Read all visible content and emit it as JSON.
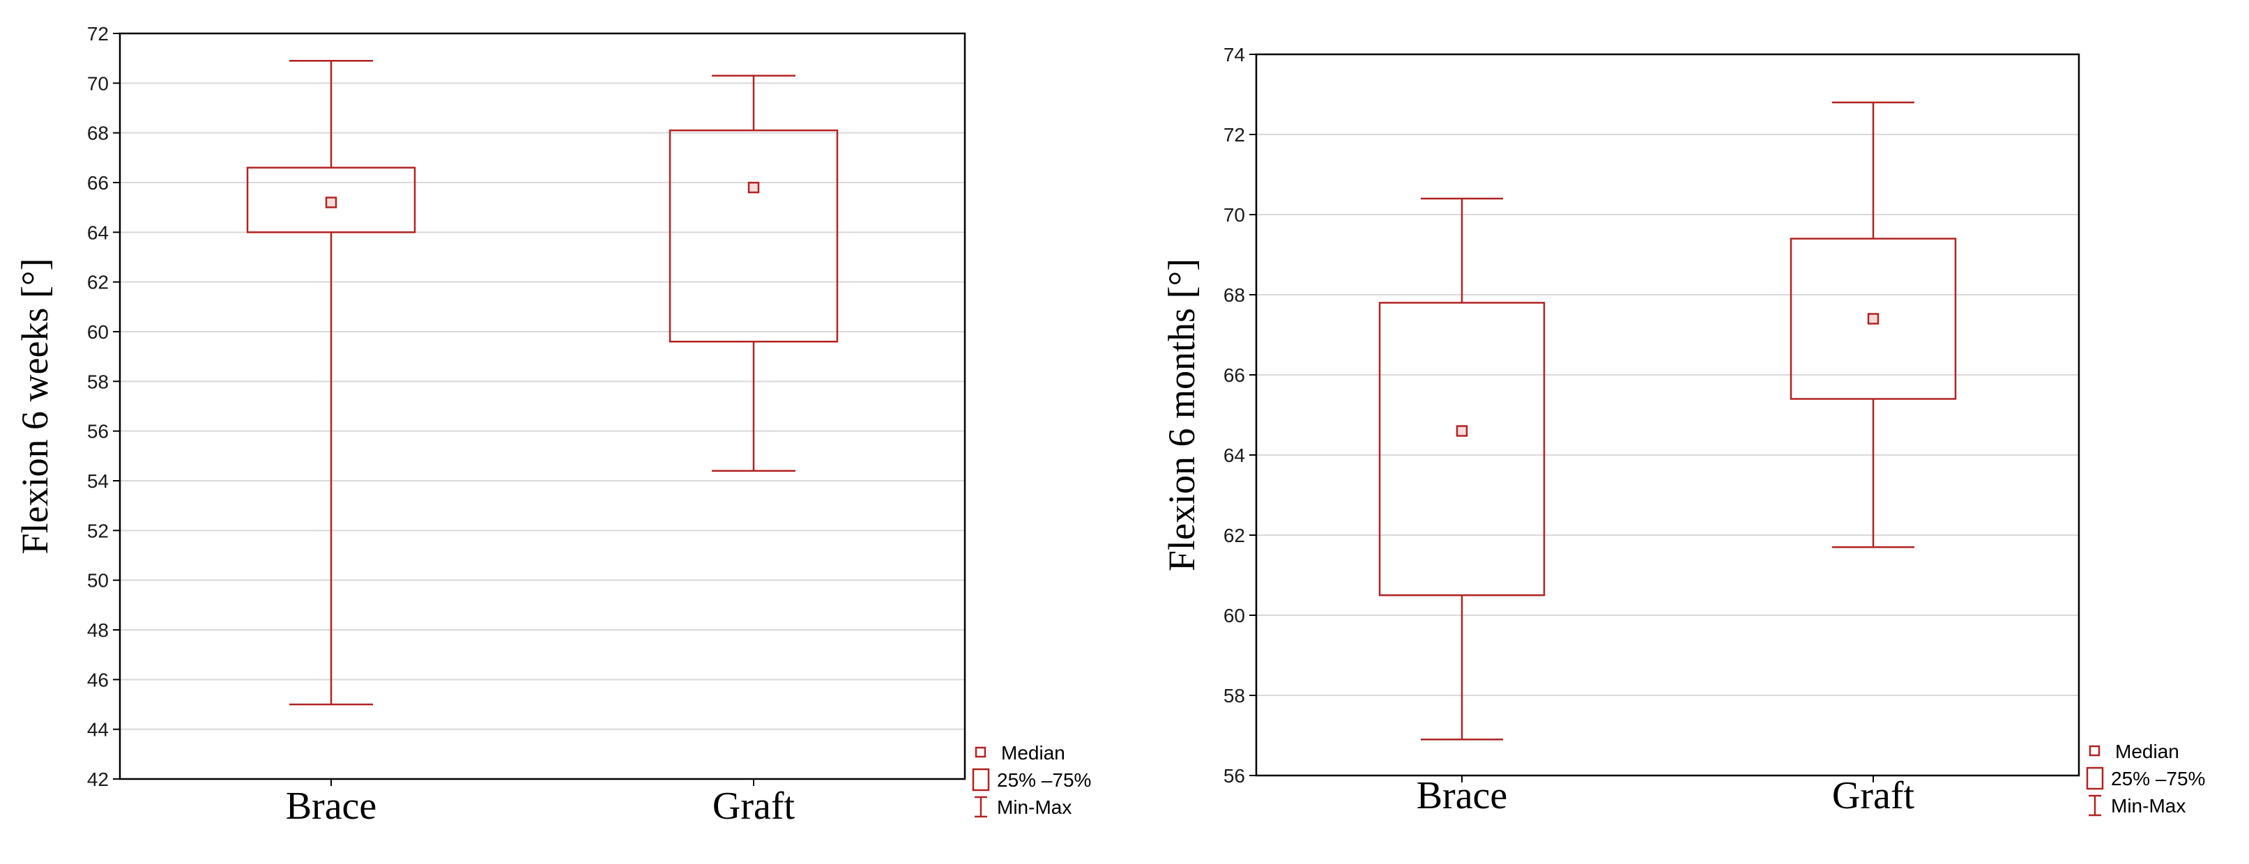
{
  "style": {
    "box_color": "#b22222",
    "grid_color": "#d9d9d9",
    "frame_color": "#000000"
  },
  "legend": {
    "median": "Median",
    "iqr": "25% –75%",
    "range": "Min-Max"
  },
  "chart_data": [
    {
      "type": "boxplot",
      "title": "",
      "ylabel": "Flexion 6 weeks [°]",
      "xlabel": "",
      "ylim": [
        42,
        72
      ],
      "ytick_step": 2,
      "grid": "horizontal",
      "legend_position": "right-bottom",
      "categories": [
        "Brace",
        "Graft"
      ],
      "boxes": [
        {
          "category": "Brace",
          "min": 45.0,
          "q1": 64.0,
          "median": 65.2,
          "q3": 66.6,
          "max": 70.9
        },
        {
          "category": "Graft",
          "min": 54.4,
          "q1": 59.6,
          "median": 65.8,
          "q3": 68.1,
          "max": 70.3
        }
      ]
    },
    {
      "type": "boxplot",
      "title": "",
      "ylabel": "Flexion 6 months [°]",
      "xlabel": "",
      "ylim": [
        56,
        74
      ],
      "ytick_step": 2,
      "grid": "horizontal",
      "legend_position": "right-bottom",
      "categories": [
        "Brace",
        "Graft"
      ],
      "boxes": [
        {
          "category": "Brace",
          "min": 56.9,
          "q1": 60.5,
          "median": 64.6,
          "q3": 67.8,
          "max": 70.4
        },
        {
          "category": "Graft",
          "min": 61.7,
          "q1": 65.4,
          "median": 67.4,
          "q3": 69.4,
          "max": 72.8
        }
      ]
    }
  ]
}
